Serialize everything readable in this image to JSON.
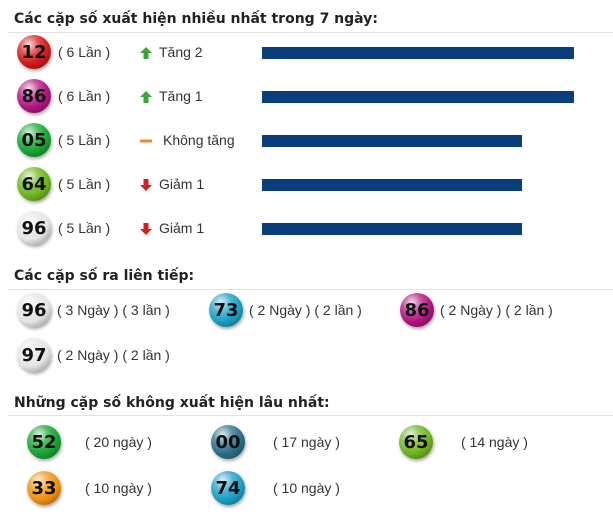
{
  "sections": {
    "frequent_title": "Các cặp số xuất hiện nhiều nhất trong 7 ngày:",
    "consecutive_title": "Các cặp số ra liên tiếp:",
    "absent_title": "Những cặp số không xuất hiện lâu nhất:"
  },
  "frequent": [
    {
      "number": "12",
      "count_text": "( 6 Lần )",
      "trend": "up",
      "trend_text": "Tăng 2",
      "times": 6,
      "ball_color": "#d11a1a"
    },
    {
      "number": "86",
      "count_text": "( 6 Lần )",
      "trend": "up",
      "trend_text": "Tăng 1",
      "times": 6,
      "ball_color": "#b0147f"
    },
    {
      "number": "05",
      "count_text": "( 5 Lần )",
      "trend": "same",
      "trend_text": "Không tăng",
      "times": 5,
      "ball_color": "#17a332"
    },
    {
      "number": "64",
      "count_text": "( 5 Lần )",
      "trend": "down",
      "trend_text": "Giảm 1",
      "times": 5,
      "ball_color": "#6cb41c"
    },
    {
      "number": "96",
      "count_text": "( 5 Lần )",
      "trend": "down",
      "trend_text": "Giảm 1",
      "times": 5,
      "ball_color": "#e4e4e4"
    }
  ],
  "frequent_max_times": 6,
  "consecutive": [
    {
      "number": "96",
      "detail": "( 3 Ngày ) ( 3 lần )",
      "ball_color": "#e4e4e4"
    },
    {
      "number": "73",
      "detail": "( 2 Ngày ) ( 2 lần )",
      "ball_color": "#1b9ec4"
    },
    {
      "number": "86",
      "detail": "( 2 Ngày ) ( 2 lần )",
      "ball_color": "#b0147f"
    },
    {
      "number": "97",
      "detail": "( 2 Ngày ) ( 2 lần )",
      "ball_color": "#e4e4e4"
    }
  ],
  "absent": [
    {
      "number": "52",
      "detail": "( 20 ngày )",
      "ball_color": "#17a332"
    },
    {
      "number": "00",
      "detail": "( 17 ngày )",
      "ball_color": "#2a6e86"
    },
    {
      "number": "65",
      "detail": "( 14 ngày )",
      "ball_color": "#6cb41c"
    },
    {
      "number": "33",
      "detail": "( 10 ngày )",
      "ball_color": "#f0900e"
    },
    {
      "number": "74",
      "detail": "( 10 ngày )",
      "ball_color": "#1b9ec4"
    }
  ],
  "colors": {
    "bar": "#0a3d7c",
    "trend_up": "#3aa63a",
    "trend_down": "#d42020",
    "trend_same": "#f08a30",
    "title": "#222222"
  },
  "icons": {
    "up": "arrow-up-icon",
    "down": "arrow-down-icon",
    "same": "dash-icon"
  }
}
